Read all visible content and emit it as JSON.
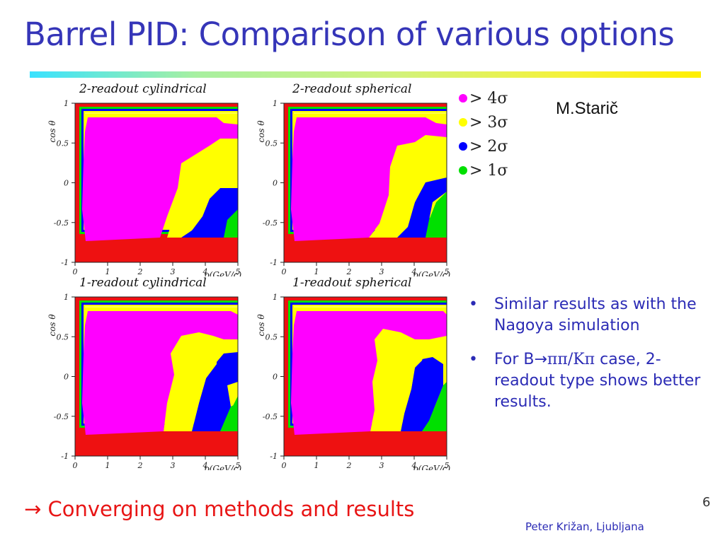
{
  "slide": {
    "title": "Barrel PID: Comparison of various options",
    "author": "M.Starič",
    "bottom_note": "→ Converging on methods and results",
    "slide_number": "6",
    "footer_author": "Peter Križan, Ljubljana"
  },
  "legend": [
    {
      "label": "> 4σ",
      "color": "#ff00ff"
    },
    {
      "label": "> 3σ",
      "color": "#ffff00"
    },
    {
      "label": "> 2σ",
      "color": "#0000ff"
    },
    {
      "label": "> 1σ",
      "color": "#00e000"
    }
  ],
  "plots": [
    {
      "title": "2-readout cylindrical"
    },
    {
      "title": "2-readout spherical"
    },
    {
      "title": "1-readout cylindrical"
    },
    {
      "title": "1-readout spherical"
    }
  ],
  "axes": {
    "ylabel": "cos θ",
    "xlabel": "p(GeV/c)",
    "xticks": [
      "0",
      "1",
      "2",
      "3",
      "4",
      "5"
    ],
    "yticks": [
      "1",
      "0.5",
      "0",
      "-0.5",
      "-1"
    ]
  },
  "bullets": [
    {
      "text": "Similar results as with the Nagoya simulation"
    },
    {
      "prefix": "For B",
      "arrow": "→",
      "formula": "ππ/Kπ",
      "suffix": " case, 2-readout type shows better results."
    }
  ]
}
